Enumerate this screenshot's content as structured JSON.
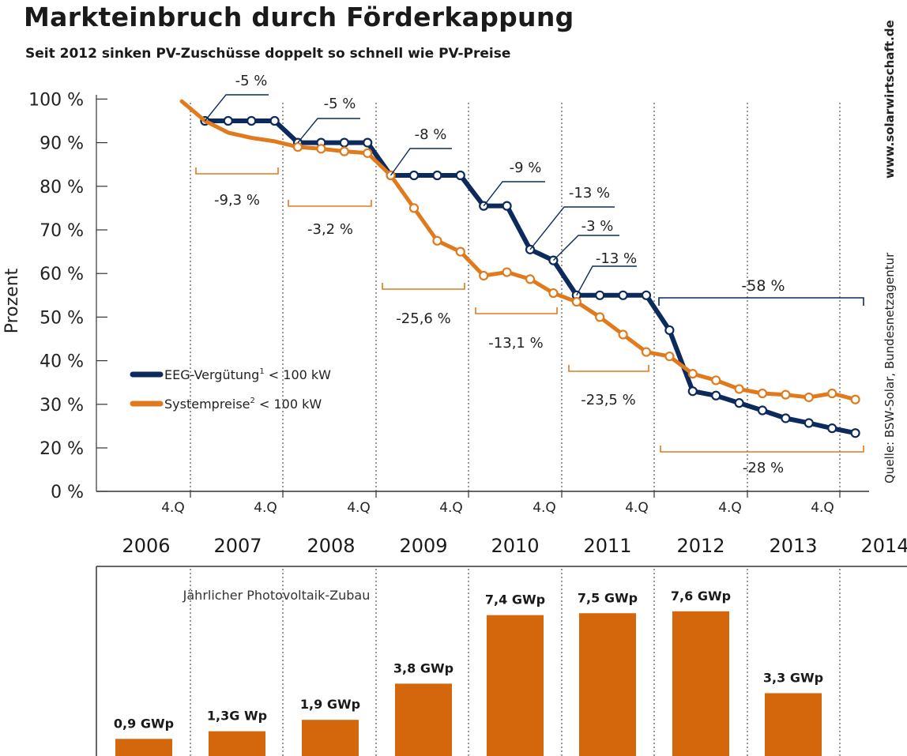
{
  "title": "Markteinbruch durch Förderkappung",
  "subtitle": "Seit 2012 sinken PV-Zuschüsse doppelt so schnell wie PV-Preise",
  "source": "Quelle: BSW-Solar, Bundesnetzagentur",
  "website": "www.solarwirtschaft.de",
  "colors": {
    "eeg": "#0c2a5b",
    "system": "#e07a1c",
    "bar": "#d4670c",
    "axis": "#333333",
    "grid": "#555555"
  },
  "chart_data": [
    {
      "type": "line",
      "ylabel": "Prozent",
      "ylim": [
        0,
        100
      ],
      "y_ticks": [
        "0 %",
        "20 %",
        "30 %",
        "40 %",
        "50 %",
        "60 %",
        "70 %",
        "80 %",
        "90 %",
        "100 %"
      ],
      "y_tick_values": [
        0,
        20,
        30,
        40,
        50,
        60,
        70,
        80,
        90,
        100
      ],
      "quarter_label": "4.Q",
      "years": [
        "2006",
        "2007",
        "2008",
        "2009",
        "2010",
        "2011",
        "2012",
        "2013",
        "2014"
      ],
      "x_unit": "quarter index (0 = 4.Q 2006)",
      "legend": [
        {
          "label": "EEG-Vergütung",
          "sup": "1",
          "suffix": "< 100 kW",
          "color": "#0c2a5b"
        },
        {
          "label": "Systempreise",
          "sup": "2",
          "suffix": "< 100 kW",
          "color": "#e07a1c"
        }
      ],
      "legend_position": "lower-left",
      "series": [
        {
          "name": "EEG-Vergütung",
          "color": "#0c2a5b",
          "points": [
            [
              1,
              95
            ],
            [
              2,
              95
            ],
            [
              3,
              95
            ],
            [
              4,
              95
            ],
            [
              5,
              90
            ],
            [
              6,
              90
            ],
            [
              7,
              90
            ],
            [
              8,
              90
            ],
            [
              9,
              82.5
            ],
            [
              10,
              82.5
            ],
            [
              11,
              82.5
            ],
            [
              12,
              82.5
            ],
            [
              13,
              75.5
            ],
            [
              14,
              75.5
            ],
            [
              15,
              65.5
            ],
            [
              16,
              63
            ],
            [
              17,
              55
            ],
            [
              18,
              55
            ],
            [
              19,
              55
            ],
            [
              20,
              55
            ],
            [
              21,
              47
            ],
            [
              22,
              33
            ],
            [
              23,
              32
            ],
            [
              24,
              30.3
            ],
            [
              25,
              28.6
            ],
            [
              26,
              26.8
            ],
            [
              27,
              25.7
            ],
            [
              28,
              24.5
            ],
            [
              29,
              23.4
            ]
          ],
          "markers_from": 1,
          "step_to": [
            [
              4.7,
              95
            ],
            [
              4.7,
              90
            ]
          ],
          "changes": [
            "-5 %",
            "-5 %",
            "-8 %",
            "-9 %",
            "-13 %",
            "-3 %",
            "-13 %"
          ]
        },
        {
          "name": "Systempreise",
          "color": "#e07a1c",
          "points": [
            [
              0,
              99.5
            ],
            [
              1,
              95
            ],
            [
              2,
              92.3
            ],
            [
              3,
              91.1
            ],
            [
              4,
              90.3
            ],
            [
              5,
              89
            ],
            [
              6,
              88.6
            ],
            [
              7,
              88
            ],
            [
              8,
              87.6
            ],
            [
              9,
              82.5
            ],
            [
              10,
              75
            ],
            [
              11,
              67.5
            ],
            [
              12,
              65
            ],
            [
              13,
              59.5
            ],
            [
              14,
              60.3
            ],
            [
              15,
              58.7
            ],
            [
              16,
              55.5
            ],
            [
              17,
              53.5
            ],
            [
              18,
              50
            ],
            [
              19,
              46
            ],
            [
              20,
              42
            ],
            [
              21,
              41
            ],
            [
              22,
              37
            ],
            [
              23,
              35.5
            ],
            [
              24,
              33.5
            ],
            [
              25,
              32.5
            ],
            [
              26,
              32.2
            ],
            [
              27,
              31.6
            ],
            [
              28,
              32.5
            ],
            [
              29,
              31.1
            ]
          ],
          "markers_from": 5
        }
      ],
      "annotations_eeg": [
        {
          "text": "-5 %",
          "x": 1,
          "y": 95
        },
        {
          "text": "-5 %",
          "x": 5,
          "y": 90
        },
        {
          "text": "-8 %",
          "x": 9,
          "y": 82.5
        },
        {
          "text": "-9 %",
          "x": 13,
          "y": 75.5
        },
        {
          "text": "-13 %",
          "x": 15,
          "y": 65.5
        },
        {
          "text": "-3 %",
          "x": 16,
          "y": 63
        },
        {
          "text": "-13 %",
          "x": 17,
          "y": 55
        },
        {
          "text": "-58 %",
          "x": 21,
          "y": 55
        }
      ],
      "annotations_system": [
        "-9,3 %",
        "-3,2 %",
        "-25,6 %",
        "-13,1 %",
        "-23,5 %",
        "-28 %"
      ]
    },
    {
      "type": "bar",
      "title": "Jährlicher Photovoltaik-Zubau",
      "categories": [
        "2006",
        "2007",
        "2008",
        "2009",
        "2010",
        "2011",
        "2012",
        "2013"
      ],
      "values": [
        0.9,
        1.3,
        1.9,
        3.8,
        7.4,
        7.5,
        7.6,
        3.3
      ],
      "labels": [
        "0,9 GWp",
        "1,3G Wp",
        "1,9 GWp",
        "3,8 GWp",
        "7,4 GWp",
        "7,5 GWp",
        "7,6 GWp",
        "3,3 GWp"
      ],
      "unit": "GWp",
      "color": "#d4670c"
    }
  ]
}
